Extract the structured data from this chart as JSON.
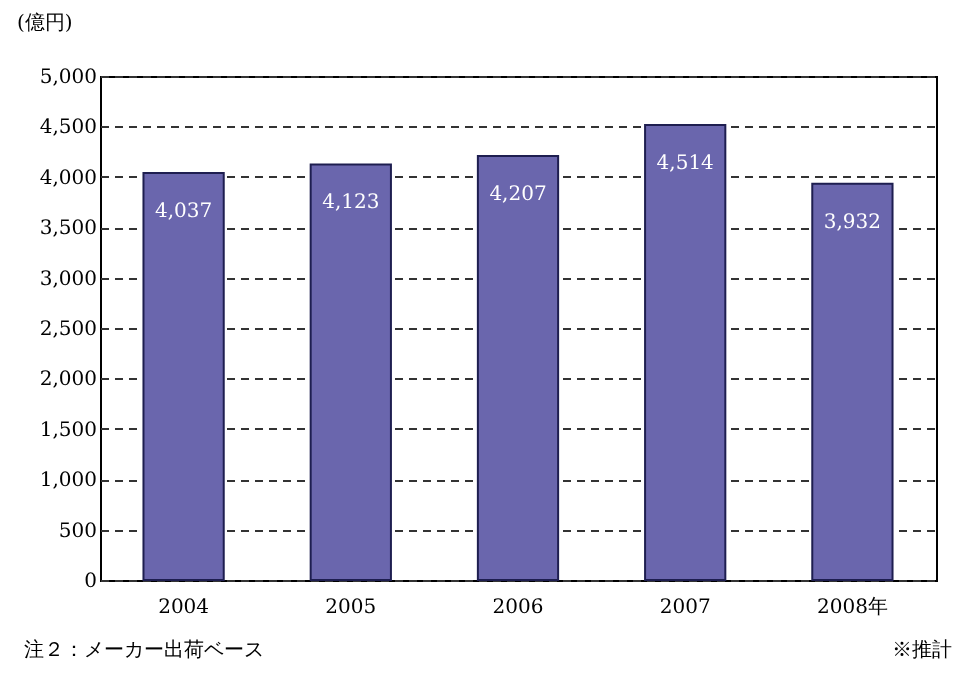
{
  "chart_data": {
    "type": "bar",
    "ylabel": "(億円)",
    "categories": [
      "2004",
      "2005",
      "2006",
      "2007",
      "2008年"
    ],
    "values": [
      4037,
      4123,
      4207,
      4514,
      3932
    ],
    "value_labels": [
      "4,037",
      "4,123",
      "4,207",
      "4,514",
      "3,932"
    ],
    "color": "#6a66ad",
    "ylim": [
      0,
      5000
    ],
    "yticks": [
      {
        "value": 0,
        "label": "0"
      },
      {
        "value": 500,
        "label": "500"
      },
      {
        "value": 1000,
        "label": "1,000"
      },
      {
        "value": 1500,
        "label": "1,500"
      },
      {
        "value": 2000,
        "label": "2,000"
      },
      {
        "value": 2500,
        "label": "2,500"
      },
      {
        "value": 3000,
        "label": "3,000"
      },
      {
        "value": 3500,
        "label": "3,500"
      },
      {
        "value": 4000,
        "label": "4,000"
      },
      {
        "value": 4500,
        "label": "4,500"
      },
      {
        "value": 5000,
        "label": "5,000"
      }
    ],
    "grid": "y",
    "annotations": [
      "注２：メーカー出荷ベース",
      "※推計"
    ]
  }
}
